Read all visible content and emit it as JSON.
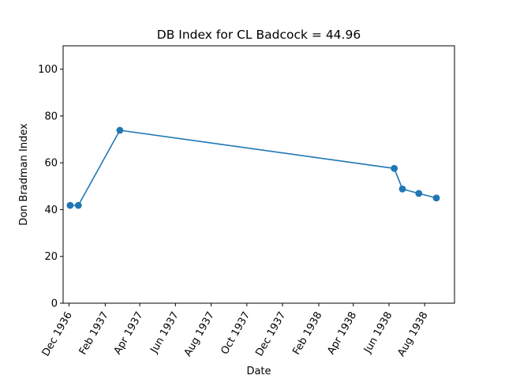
{
  "chart_data": {
    "type": "line",
    "title": "DB Index for CL Badcock = 44.96",
    "xlabel": "Date",
    "ylabel": "Don Bradman Index",
    "x_tick_labels": [
      "Dec 1936",
      "Feb 1937",
      "Apr 1937",
      "Jun 1937",
      "Aug 1937",
      "Oct 1937",
      "Dec 1937",
      "Feb 1938",
      "Apr 1938",
      "Jun 1938",
      "Aug 1938"
    ],
    "x_tick_dates": [
      "1936-12-01",
      "1937-02-01",
      "1937-04-01",
      "1937-06-01",
      "1937-08-01",
      "1937-10-01",
      "1937-12-01",
      "1938-02-01",
      "1938-04-01",
      "1938-06-01",
      "1938-08-01"
    ],
    "xlim": [
      "1936-11-21",
      "1938-09-21"
    ],
    "ylim": [
      0,
      110
    ],
    "y_ticks": [
      0,
      20,
      40,
      60,
      80,
      100
    ],
    "grid": false,
    "legend": "none",
    "series": [
      {
        "color": "#1f77b4",
        "marker": "circle",
        "x": [
          "1936-12-03",
          "1936-12-17",
          "1937-02-26",
          "1938-06-10",
          "1938-06-24",
          "1938-07-22",
          "1938-08-21"
        ],
        "y": [
          41.8,
          41.8,
          73.9,
          57.6,
          48.8,
          46.9,
          44.96
        ]
      }
    ]
  }
}
